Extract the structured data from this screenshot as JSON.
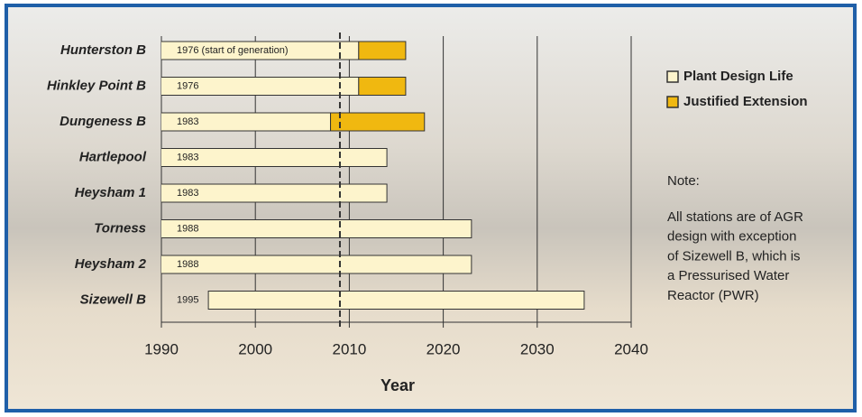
{
  "chart_data": {
    "type": "gantt",
    "categories": [
      "Hunterston B",
      "Hinkley Point B",
      "Dungeness B",
      "Hartlepool",
      "Heysham 1",
      "Torness",
      "Heysham 2",
      "Sizewell B"
    ],
    "starts": [
      1976,
      1976,
      1983,
      1983,
      1983,
      1988,
      1988,
      1995
    ],
    "start_labels": [
      "1976 (start of generation)",
      "1976",
      "1983",
      "1983",
      "1983",
      "1988",
      "1988",
      "1995"
    ],
    "series": [
      {
        "name": "Plant Design Life",
        "color": "#fdf4cc",
        "values": [
          35,
          35,
          25,
          31,
          31,
          35,
          35,
          40
        ]
      },
      {
        "name": "Justified Extension",
        "color": "#f0b810",
        "values": [
          5,
          5,
          10,
          null,
          null,
          null,
          null,
          null
        ]
      }
    ],
    "xlim": [
      1990,
      2040
    ],
    "xticks": [
      1990,
      2000,
      2010,
      2020,
      2030,
      2040
    ],
    "xlabel": "Year",
    "grid": true,
    "reference_line": 2009,
    "note_title": "Note:",
    "note_lines": [
      "All stations are of AGR",
      "design with exception",
      "of Sizewell B, which is",
      "a Pressurised Water",
      "Reactor (PWR)"
    ]
  }
}
